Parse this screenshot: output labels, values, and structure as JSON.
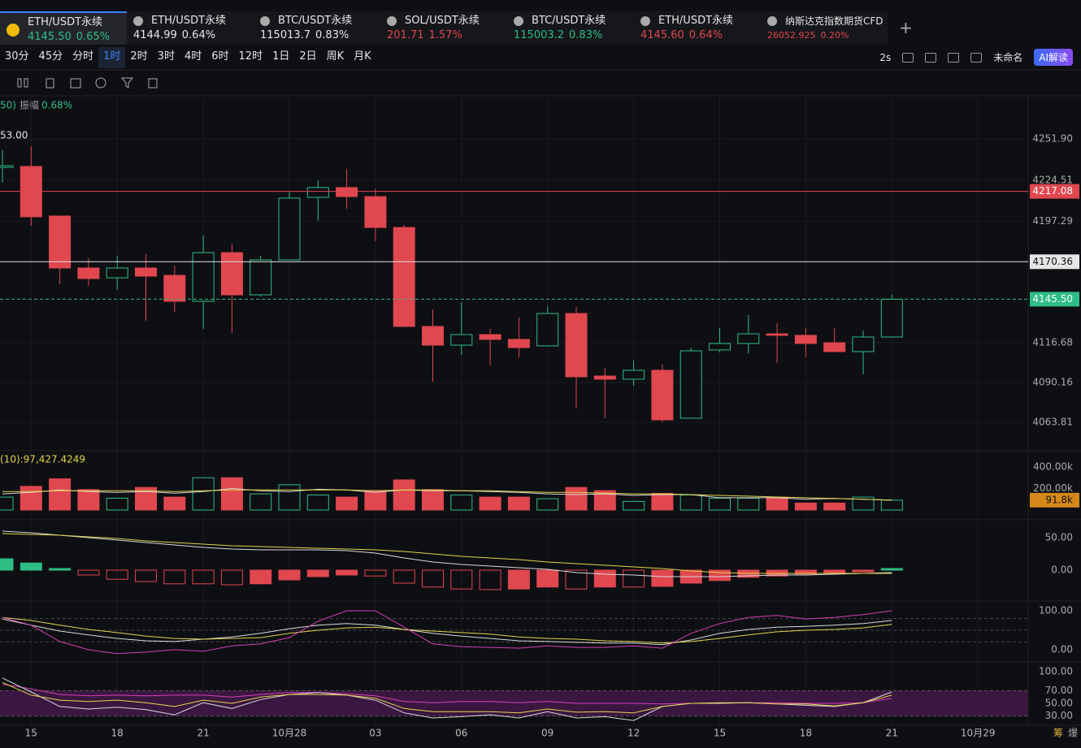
{
  "tabs": [
    {
      "name": "ETH/USDT永续",
      "price": "4145.50",
      "change": "0.65%",
      "color": "#2ebd85",
      "active": true
    },
    {
      "name": "ETH/USDT永续",
      "price": "4144.99",
      "change": "0.64%",
      "color": "#e6e6e6",
      "active": false
    },
    {
      "name": "BTC/USDT永续",
      "price": "115013.7",
      "change": "0.83%",
      "color": "#e6e6e6",
      "active": false
    },
    {
      "name": "SOL/USDT永续",
      "price": "201.71",
      "change": "1.57%",
      "color": "#e0474f",
      "active": false
    },
    {
      "name": "BTC/USDT永续",
      "price": "115003.2",
      "change": "0.83%",
      "color": "#2ebd85",
      "active": false
    },
    {
      "name": "ETH/USDT永续",
      "price": "4145.60",
      "change": "0.64%",
      "color": "#e0474f",
      "active": false
    },
    {
      "name": "纳斯达克指数期货CFD",
      "price": "26052.925",
      "change": "0.20%",
      "color": "#e0474f",
      "active": false
    }
  ],
  "timeframes": [
    "30分",
    "45分",
    "分时",
    "1时",
    "2时",
    "3时",
    "4时",
    "6时",
    "12时",
    "1日",
    "2日",
    "周K",
    "月K"
  ],
  "active_timeframe": 3,
  "toolbar": {
    "interval": "2s",
    "layout_name": "未命名",
    "ai_button": "AI解读"
  },
  "info": {
    "prefix": "50)",
    "label": "振幅",
    "value": "0.68%"
  },
  "side_labels": [
    "筹",
    "爆"
  ],
  "chart_data": [
    {
      "type": "candlestick",
      "high_marker": "53.00",
      "categories": [
        null,
        "15",
        null,
        null,
        "18",
        null,
        null,
        "21",
        null,
        null,
        "10月28",
        null,
        null,
        "03",
        null,
        null,
        "06",
        null,
        null,
        "09",
        null,
        null,
        "12",
        null,
        null,
        "15",
        null,
        null,
        "18",
        null,
        null,
        "21",
        null,
        null,
        "10月29"
      ],
      "open": [
        4233.0,
        4233.6,
        4200.7,
        4166.2,
        4159.7,
        4166.2,
        4161.3,
        4144.1,
        4176.4,
        4148.4,
        4171.6,
        4213.1,
        4219.6,
        4213.6,
        4193.1,
        4127.4,
        4115.0,
        4122.0,
        4118.8,
        4114.5,
        4136.0,
        4094.5,
        4092.4,
        4098.3,
        4066.5,
        4111.8,
        4116.1,
        4122.5,
        4121.5,
        4116.6,
        4110.7,
        4120.4,
        null,
        null,
        null
      ],
      "high": [
        4244.4,
        4247.0,
        4200.7,
        4172.7,
        4174.3,
        4175.4,
        4167.8,
        4187.8,
        4182.4,
        4174.3,
        4216.9,
        4224.4,
        4232.0,
        4219.0,
        4194.8,
        4138.7,
        4143.6,
        4125.8,
        4133.3,
        4140.9,
        4140.3,
        4099.9,
        4104.8,
        4102.1,
        4113.4,
        4126.3,
        4134.9,
        4129.5,
        4126.3,
        4126.3,
        4124.7,
        4148.4,
        null,
        null,
        null
      ],
      "low": [
        4222.8,
        4194.2,
        4155.4,
        4154.3,
        4151.6,
        4131.2,
        4137.1,
        4125.8,
        4123.1,
        4147.3,
        4171.6,
        4197.5,
        4205.5,
        4184.0,
        4127.4,
        4090.7,
        4108.5,
        4101.5,
        4106.9,
        4114.5,
        4072.9,
        4066.5,
        4088.0,
        4063.8,
        4066.5,
        4110.1,
        4109.6,
        4103.1,
        4106.9,
        4110.7,
        4095.6,
        4120.4,
        null,
        null,
        null
      ],
      "close": [
        4234.1,
        4200.2,
        4166.2,
        4159.2,
        4166.2,
        4160.8,
        4144.1,
        4176.4,
        4148.4,
        4171.6,
        4212.6,
        4219.6,
        4213.6,
        4193.1,
        4127.4,
        4115.0,
        4122.0,
        4118.8,
        4113.4,
        4136.0,
        4094.0,
        4092.4,
        4098.3,
        4065.4,
        4111.2,
        4116.1,
        4122.5,
        4121.5,
        4116.1,
        4110.7,
        4120.4,
        4145.5,
        null,
        null,
        null
      ],
      "up_color": "#2ebd85",
      "down_color": "#e0474f",
      "ylim": [
        4044.9,
        4279.4
      ],
      "yticks": [
        {
          "value": 4251.9,
          "label": "4251.90"
        },
        {
          "value": 4224.51,
          "label": "4224.51"
        },
        {
          "value": 4197.29,
          "label": "4197.29"
        },
        {
          "value": 4116.68,
          "label": "4116.68"
        },
        {
          "value": 4090.16,
          "label": "4090.16"
        },
        {
          "value": 4063.81,
          "label": "4063.81"
        }
      ],
      "price_lines": [
        {
          "value": 4217.08,
          "label": "4217.08",
          "color": "#e0474f",
          "dashed": false
        },
        {
          "value": 4170.36,
          "label": "4170.36",
          "color": "#e6e6e6",
          "dashed": false
        },
        {
          "value": 4145.5,
          "label": "4145.50",
          "color": "#2ebd85",
          "dashed": true
        }
      ],
      "grid": true
    },
    {
      "type": "volume",
      "title": "(10):97,427.4249",
      "title_color": "#e3d44a",
      "values": [
        120000,
        220000,
        290000,
        190000,
        110000,
        210000,
        120000,
        300000,
        300000,
        150000,
        235000,
        140000,
        120000,
        180000,
        280000,
        190000,
        140000,
        120000,
        120000,
        105000,
        210000,
        180000,
        80000,
        155000,
        140000,
        110000,
        110000,
        120000,
        65000,
        65000,
        120000,
        91800,
        null,
        null,
        null
      ],
      "value_labels": [
        null,
        null,
        null,
        null,
        null,
        null,
        null,
        null,
        null,
        null,
        null,
        null,
        null,
        null,
        null,
        null,
        null,
        null,
        null,
        null,
        null,
        null,
        null,
        null,
        null,
        null,
        null,
        null,
        null,
        null,
        null,
        "91.8k",
        null,
        null,
        null
      ],
      "lines": [
        {
          "color": "#d9d9d9",
          "values": [
            150000,
            164000,
            186000,
            171000,
            164000,
            171000,
            157000,
            171000,
            200000,
            179000,
            171000,
            193000,
            186000,
            164000,
            186000,
            179000,
            179000,
            171000,
            164000,
            150000,
            143000,
            150000,
            136000,
            143000,
            143000,
            114000,
            114000,
            114000,
            100000,
            107000,
            100000,
            93000,
            null,
            null,
            null
          ]
        },
        {
          "color": "#e3d44a",
          "values": [
            171000,
            171000,
            179000,
            179000,
            179000,
            179000,
            171000,
            179000,
            186000,
            186000,
            186000,
            186000,
            186000,
            179000,
            186000,
            186000,
            179000,
            179000,
            171000,
            164000,
            164000,
            157000,
            150000,
            150000,
            143000,
            136000,
            129000,
            121000,
            114000,
            107000,
            100000,
            93000,
            null,
            null,
            null
          ]
        }
      ],
      "ylim": [
        0,
        513000
      ],
      "yticks": [
        {
          "value": 400000,
          "label": "400.00k"
        },
        {
          "value": 200000,
          "label": "200.00k"
        }
      ]
    },
    {
      "type": "macd",
      "values": [
        17.5,
        11,
        2.5,
        -7.5,
        -14,
        -17.5,
        -21,
        -21,
        -22.5,
        -21,
        -15,
        -10,
        -7.5,
        -9,
        -20,
        -26,
        -29,
        -30,
        -29,
        -26,
        -29,
        -26,
        -26,
        -25,
        -20,
        -16,
        -11,
        -9,
        -6,
        -5,
        -2.5,
        2.5,
        null,
        null,
        null
      ],
      "lines": [
        {
          "color": "#d9d9d9",
          "values": [
            60,
            57.5,
            53.75,
            50,
            46.25,
            42.5,
            38.75,
            35,
            32.5,
            31.25,
            31.25,
            31.25,
            30,
            26.25,
            18.75,
            12.5,
            8.75,
            6.25,
            3.75,
            1.25,
            -3.75,
            -6.25,
            -7.5,
            -10,
            -10,
            -10,
            -8.75,
            -7.5,
            -7.5,
            -6.25,
            -5,
            -3.75,
            null,
            null,
            null
          ]
        },
        {
          "color": "#e3d44a",
          "values": [
            56.25,
            55,
            53.75,
            51.25,
            48.75,
            45,
            42.5,
            40,
            37.5,
            36.25,
            35,
            33.75,
            32.5,
            31.25,
            28.75,
            25,
            21.25,
            18.75,
            16.25,
            12.5,
            10,
            7.5,
            5,
            2.5,
            -1.25,
            -3.75,
            -5,
            -5,
            -5,
            -5,
            -5,
            -5,
            null,
            null,
            null
          ]
        }
      ],
      "ylim": [
        -47.5,
        77.5
      ],
      "yticks": [
        {
          "value": 50,
          "label": "50.00"
        },
        {
          "value": 0,
          "label": "0.00"
        }
      ]
    },
    {
      "type": "line",
      "lines": [
        {
          "color": "#d9d9d9",
          "values": [
            79,
            63,
            48,
            38,
            29,
            23,
            21,
            27,
            33,
            42,
            54,
            63,
            67,
            63,
            52,
            42,
            35,
            29,
            23,
            21,
            19,
            17,
            17,
            13,
            25,
            42,
            52,
            58,
            60,
            63,
            67,
            75,
            null,
            null,
            null
          ]
        },
        {
          "color": "#e3d44a",
          "values": [
            83,
            75,
            63,
            52,
            44,
            35,
            29,
            27,
            29,
            31,
            42,
            50,
            56,
            58,
            52,
            48,
            44,
            40,
            33,
            29,
            27,
            23,
            21,
            17,
            21,
            29,
            38,
            46,
            50,
            52,
            56,
            65,
            null,
            null,
            null
          ]
        },
        {
          "color": "#d63fb8",
          "values": [
            83,
            63,
            21,
            0,
            -10,
            -6,
            0,
            -4,
            10,
            15,
            31,
            73,
            100,
            100,
            58,
            15,
            8,
            6,
            4,
            10,
            6,
            6,
            10,
            4,
            42,
            67,
            83,
            88,
            79,
            83,
            90,
            100,
            null,
            null,
            null
          ]
        }
      ],
      "levels": [
        80,
        50,
        20
      ],
      "ylim": [
        -31.25,
        125
      ],
      "yticks": [
        {
          "value": 100,
          "label": "100.00"
        },
        {
          "value": 0,
          "label": "0.00"
        }
      ]
    },
    {
      "type": "line",
      "lines": [
        {
          "color": "#d63fb8",
          "values": [
            80,
            73,
            64,
            62,
            63,
            62,
            63,
            63,
            60,
            64,
            67,
            67,
            65,
            62,
            53,
            51,
            53,
            53,
            51,
            53,
            50,
            50,
            50,
            49,
            50,
            50,
            51,
            51,
            50,
            50,
            51,
            58,
            null,
            null,
            null
          ]
        },
        {
          "color": "#d9d9d9",
          "values": [
            90,
            68,
            45,
            41,
            44,
            40,
            32,
            51,
            42,
            56,
            64,
            67,
            63,
            55,
            35,
            27,
            29,
            32,
            27,
            37,
            27,
            29,
            23,
            45,
            50,
            50,
            51,
            49,
            47,
            45,
            51,
            68,
            null,
            null,
            null
          ]
        },
        {
          "color": "#e3d44a",
          "values": [
            83,
            63,
            55,
            53,
            55,
            51,
            45,
            55,
            50,
            60,
            64,
            64,
            63,
            58,
            42,
            37,
            37,
            37,
            35,
            41,
            36,
            37,
            35,
            45,
            50,
            51,
            51,
            49,
            49,
            46,
            51,
            63,
            null,
            null,
            null
          ]
        }
      ],
      "band": [
        70,
        30
      ],
      "band_color": "#3a1740",
      "ylim": [
        15.4,
        115.4
      ],
      "yticks": [
        {
          "value": 100,
          "label": "100.00"
        },
        {
          "value": 70,
          "label": "70.00"
        },
        {
          "value": 50,
          "label": "50.00"
        },
        {
          "value": 30,
          "label": "30.00"
        }
      ]
    }
  ]
}
